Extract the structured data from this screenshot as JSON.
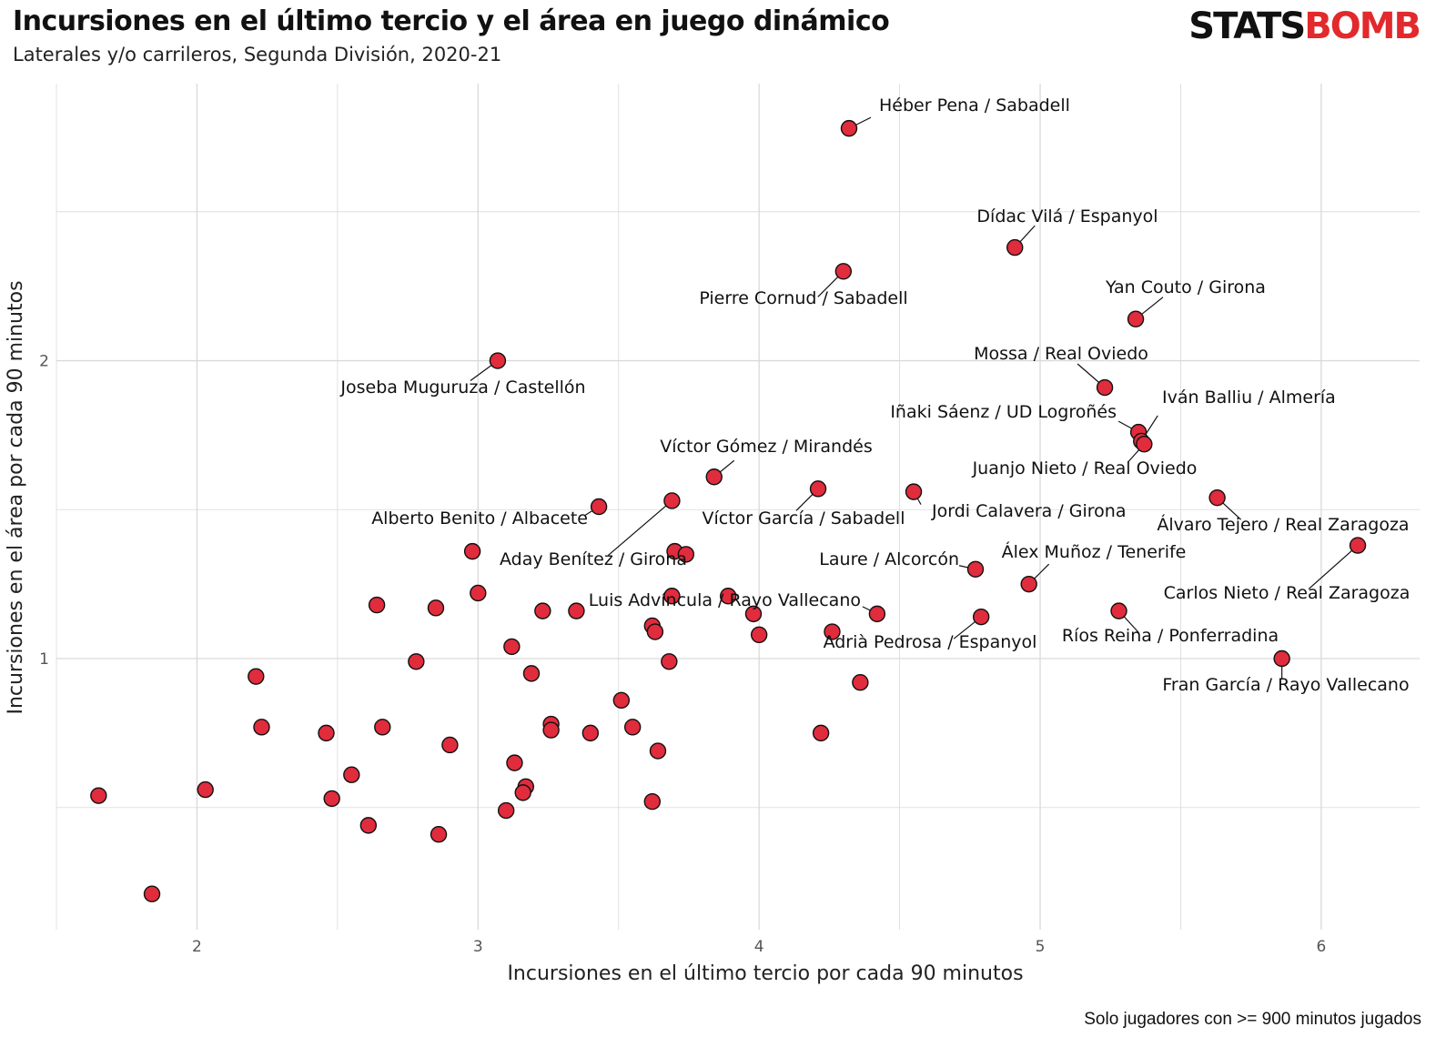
{
  "title": "Incursiones en el último tercio y el área en juego dinámico",
  "subtitle": "Laterales y/o carrileros, Segunda División, 2020-21",
  "logo": {
    "part1": "STATS",
    "part2": "BOMB"
  },
  "caption": "Solo jugadores con >= 900 minutos jugados",
  "colors": {
    "point_fill": "#e02c3c",
    "point_stroke": "#111111",
    "grid": "#d9d9d9",
    "leader": "#111111"
  },
  "chart_data": {
    "type": "scatter",
    "xlabel": "Incursiones en el último tercio por cada 90 minutos",
    "ylabel": "Incursiones en el área por cada 90 minutos",
    "xlim": [
      1.5,
      6.35
    ],
    "ylim": [
      0.09,
      2.93
    ],
    "xticks": [
      "2",
      "3",
      "4",
      "5",
      "6"
    ],
    "yticks": [
      "1",
      "2"
    ],
    "xtick_values": [
      2,
      3,
      4,
      5,
      6
    ],
    "ytick_values": [
      1,
      2
    ],
    "grid": true,
    "points": [
      {
        "x": 4.32,
        "y": 2.78,
        "label": "Héber Pena / Sabadell"
      },
      {
        "x": 4.91,
        "y": 2.38,
        "label": "Dídac Vilá / Espanyol"
      },
      {
        "x": 4.3,
        "y": 2.3,
        "label": "Pierre Cornud / Sabadell"
      },
      {
        "x": 5.34,
        "y": 2.14,
        "label": "Yan Couto / Girona"
      },
      {
        "x": 3.07,
        "y": 2.0,
        "label": "Joseba Muguruza / Castellón"
      },
      {
        "x": 5.23,
        "y": 1.91,
        "label": "Mossa / Real Oviedo"
      },
      {
        "x": 5.35,
        "y": 1.76,
        "label": "Iñaki Sáenz / UD Logroñés"
      },
      {
        "x": 5.36,
        "y": 1.73,
        "label": "Iván Balliu / Almería"
      },
      {
        "x": 5.37,
        "y": 1.72,
        "label": "Juanjo Nieto / Real Oviedo"
      },
      {
        "x": 3.84,
        "y": 1.61,
        "label": "Víctor Gómez / Mirandés"
      },
      {
        "x": 4.21,
        "y": 1.57,
        "label": "Víctor García / Sabadell"
      },
      {
        "x": 4.55,
        "y": 1.56,
        "label": "Jordi Calavera / Girona"
      },
      {
        "x": 5.63,
        "y": 1.54,
        "label": "Álvaro Tejero / Real Zaragoza"
      },
      {
        "x": 3.43,
        "y": 1.51,
        "label": "Alberto Benito / Albacete"
      },
      {
        "x": 3.69,
        "y": 1.53,
        "label": "Aday Benítez / Girona"
      },
      {
        "x": 6.13,
        "y": 1.38,
        "label": "Carlos Nieto / Real Zaragoza"
      },
      {
        "x": 4.77,
        "y": 1.3,
        "label": "Laure / Alcorcón"
      },
      {
        "x": 4.96,
        "y": 1.25,
        "label": "Álex Muñoz / Tenerife"
      },
      {
        "x": 4.42,
        "y": 1.15,
        "label": "Luis Advíncula / Rayo Vallecano"
      },
      {
        "x": 4.79,
        "y": 1.14,
        "label": "Adrià Pedrosa / Espanyol"
      },
      {
        "x": 5.28,
        "y": 1.16,
        "label": "Ríos Reina / Ponferradina"
      },
      {
        "x": 5.86,
        "y": 1.0,
        "label": "Fran García / Rayo Vallecano"
      },
      {
        "x": 2.98,
        "y": 1.36,
        "label": ""
      },
      {
        "x": 3.7,
        "y": 1.36,
        "label": ""
      },
      {
        "x": 3.74,
        "y": 1.35,
        "label": ""
      },
      {
        "x": 3.0,
        "y": 1.22,
        "label": ""
      },
      {
        "x": 3.69,
        "y": 1.21,
        "label": ""
      },
      {
        "x": 3.89,
        "y": 1.21,
        "label": ""
      },
      {
        "x": 2.64,
        "y": 1.18,
        "label": ""
      },
      {
        "x": 2.85,
        "y": 1.17,
        "label": ""
      },
      {
        "x": 3.23,
        "y": 1.16,
        "label": ""
      },
      {
        "x": 3.35,
        "y": 1.16,
        "label": ""
      },
      {
        "x": 3.98,
        "y": 1.15,
        "label": ""
      },
      {
        "x": 3.62,
        "y": 1.11,
        "label": ""
      },
      {
        "x": 3.63,
        "y": 1.09,
        "label": ""
      },
      {
        "x": 4.26,
        "y": 1.09,
        "label": ""
      },
      {
        "x": 4.0,
        "y": 1.08,
        "label": ""
      },
      {
        "x": 3.12,
        "y": 1.04,
        "label": ""
      },
      {
        "x": 2.78,
        "y": 0.99,
        "label": ""
      },
      {
        "x": 3.68,
        "y": 0.99,
        "label": ""
      },
      {
        "x": 2.21,
        "y": 0.94,
        "label": ""
      },
      {
        "x": 3.19,
        "y": 0.95,
        "label": ""
      },
      {
        "x": 4.36,
        "y": 0.92,
        "label": ""
      },
      {
        "x": 3.51,
        "y": 0.86,
        "label": ""
      },
      {
        "x": 2.23,
        "y": 0.77,
        "label": ""
      },
      {
        "x": 2.66,
        "y": 0.77,
        "label": ""
      },
      {
        "x": 3.26,
        "y": 0.78,
        "label": ""
      },
      {
        "x": 3.26,
        "y": 0.76,
        "label": ""
      },
      {
        "x": 3.55,
        "y": 0.77,
        "label": ""
      },
      {
        "x": 2.46,
        "y": 0.75,
        "label": ""
      },
      {
        "x": 3.4,
        "y": 0.75,
        "label": ""
      },
      {
        "x": 4.22,
        "y": 0.75,
        "label": ""
      },
      {
        "x": 2.9,
        "y": 0.71,
        "label": ""
      },
      {
        "x": 3.64,
        "y": 0.69,
        "label": ""
      },
      {
        "x": 3.13,
        "y": 0.65,
        "label": ""
      },
      {
        "x": 2.55,
        "y": 0.61,
        "label": ""
      },
      {
        "x": 2.03,
        "y": 0.56,
        "label": ""
      },
      {
        "x": 3.17,
        "y": 0.57,
        "label": ""
      },
      {
        "x": 3.16,
        "y": 0.55,
        "label": ""
      },
      {
        "x": 1.65,
        "y": 0.54,
        "label": ""
      },
      {
        "x": 2.48,
        "y": 0.53,
        "label": ""
      },
      {
        "x": 3.62,
        "y": 0.52,
        "label": ""
      },
      {
        "x": 3.1,
        "y": 0.49,
        "label": ""
      },
      {
        "x": 2.61,
        "y": 0.44,
        "label": ""
      },
      {
        "x": 2.86,
        "y": 0.41,
        "label": ""
      },
      {
        "x": 1.84,
        "y": 0.21,
        "label": ""
      }
    ]
  }
}
